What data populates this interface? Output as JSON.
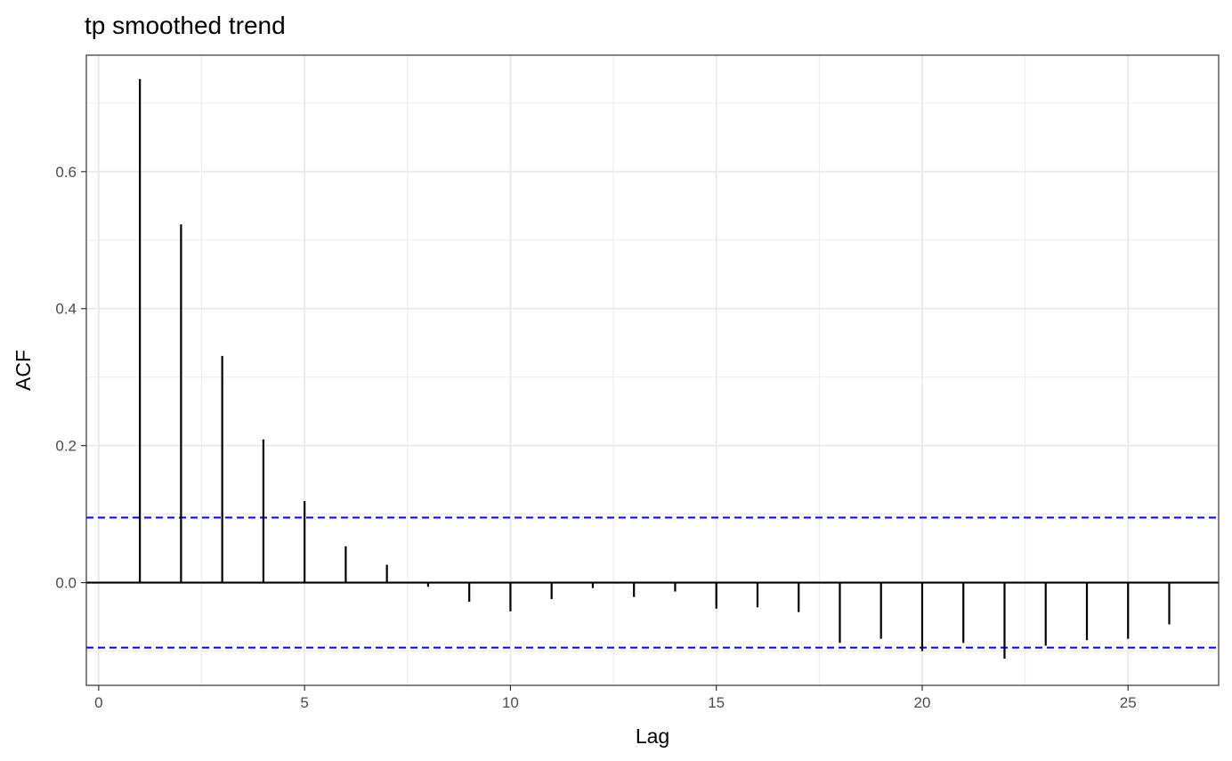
{
  "chart_data": {
    "type": "bar",
    "title": "tp smoothed trend",
    "xlabel": "Lag",
    "ylabel": "ACF",
    "xlim": [
      -0.3,
      27.2
    ],
    "ylim": [
      -0.15,
      0.77
    ],
    "x_ticks": [
      0,
      5,
      10,
      15,
      20,
      25
    ],
    "y_ticks": [
      0.0,
      0.2,
      0.4,
      0.6
    ],
    "y_tick_labels": [
      "0.0",
      "0.2",
      "0.4",
      "0.6"
    ],
    "grid": true,
    "legend": "none",
    "lags": [
      1,
      2,
      3,
      4,
      5,
      6,
      7,
      8,
      9,
      10,
      11,
      12,
      13,
      14,
      15,
      16,
      17,
      18,
      19,
      20,
      21,
      22,
      23,
      24,
      25,
      26
    ],
    "values": [
      0.735,
      0.523,
      0.331,
      0.209,
      0.119,
      0.053,
      0.026,
      -0.006,
      -0.028,
      -0.042,
      -0.024,
      -0.008,
      -0.021,
      -0.013,
      -0.038,
      -0.036,
      -0.043,
      -0.088,
      -0.082,
      -0.1,
      -0.088,
      -0.111,
      -0.092,
      -0.084,
      -0.082,
      -0.061
    ],
    "confidence_limits": [
      0.095,
      -0.095
    ],
    "colors": {
      "bars": "#000000",
      "confidence": "#0000ff",
      "grid": "#ebebeb",
      "panel_border": "#333333"
    }
  }
}
